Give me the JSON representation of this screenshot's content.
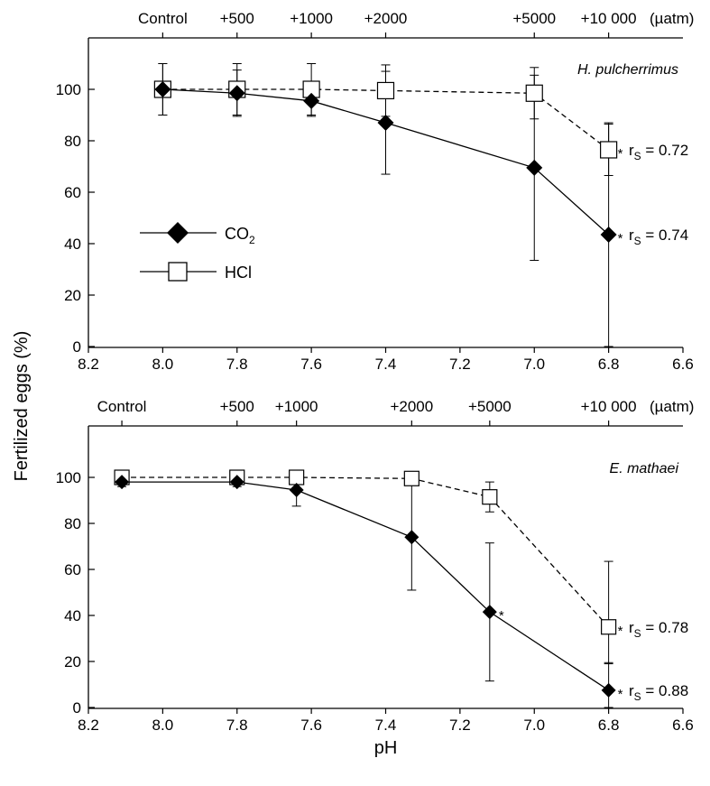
{
  "chart_data": [
    {
      "type": "line",
      "annotation_species": "H. pulcherrimus",
      "x_axis": {
        "label": "",
        "ticks": [
          8.2,
          8.0,
          7.8,
          7.6,
          7.4,
          7.2,
          7.0,
          6.8,
          6.6
        ],
        "tick_labels": [
          "8.2",
          "8.0",
          "7.8",
          "7.6",
          "7.4",
          "7.2",
          "7.0",
          "6.8",
          "6.6"
        ],
        "range": [
          8.2,
          6.6
        ]
      },
      "y_axis": {
        "ticks": [
          0,
          20,
          40,
          60,
          80,
          100
        ],
        "tick_labels": [
          "0",
          "20",
          "40",
          "60",
          "80",
          "100"
        ],
        "range": [
          0,
          118
        ]
      },
      "top_axis": {
        "unit": "(µatm)",
        "ticks": [
          {
            "label": "Control",
            "ph": 8.0
          },
          {
            "label": "+500",
            "ph": 7.8
          },
          {
            "label": "+1000",
            "ph": 7.6
          },
          {
            "label": "+2000",
            "ph": 7.4
          },
          {
            "label": "+5000",
            "ph": 7.0
          },
          {
            "label": "+10 000",
            "ph": 6.8
          }
        ]
      },
      "series": [
        {
          "name": "HCl",
          "marker": "square-open",
          "line": "dashed",
          "x": [
            8.0,
            7.8,
            7.6,
            7.4,
            7.0,
            6.8
          ],
          "y": [
            100,
            100,
            100,
            99.5,
            98.5,
            76.5
          ],
          "err": [
            [
              10,
              10
            ],
            [
              10,
              10
            ],
            [
              10,
              10
            ],
            [
              10,
              10
            ],
            [
              10,
              10
            ],
            [
              10,
              10
            ]
          ]
        },
        {
          "name": "CO2",
          "marker": "diamond-filled",
          "line": "solid",
          "x": [
            8.0,
            7.8,
            7.6,
            7.4,
            7.0,
            6.8
          ],
          "y": [
            100,
            98.5,
            95.5,
            87,
            69.5,
            43.5
          ],
          "err": [
            [
              10,
              10
            ],
            [
              9,
              9
            ],
            [
              6,
              6
            ],
            [
              20,
              20
            ],
            [
              36,
              36
            ],
            [
              43.5,
              43.5
            ]
          ]
        }
      ],
      "stats": [
        {
          "text": "r",
          "sub": "S",
          "value": " = 0.72",
          "series": "HCl"
        },
        {
          "text": "r",
          "sub": "S",
          "value": " = 0.74",
          "series": "CO2"
        }
      ],
      "significance": [
        {
          "series": "HCl",
          "x": 6.8
        },
        {
          "series": "CO2",
          "x": 6.8
        }
      ],
      "legend": {
        "placement": "center-left",
        "entries": [
          {
            "label": "CO",
            "sub": "2",
            "marker": "diamond-filled"
          },
          {
            "label": "HCl",
            "sub": "",
            "marker": "square-open"
          }
        ]
      }
    },
    {
      "type": "line",
      "annotation_species": "E. mathaei",
      "x_axis": {
        "label": "pH",
        "ticks": [
          8.2,
          8.0,
          7.8,
          7.6,
          7.4,
          7.2,
          7.0,
          6.8,
          6.6
        ],
        "tick_labels": [
          "8.2",
          "8.0",
          "7.8",
          "7.6",
          "7.4",
          "7.2",
          "7.0",
          "6.8",
          "6.6"
        ],
        "range": [
          8.2,
          6.6
        ]
      },
      "y_axis": {
        "ticks": [
          0,
          20,
          40,
          60,
          80,
          100
        ],
        "tick_labels": [
          "0",
          "20",
          "40",
          "60",
          "80",
          "100"
        ],
        "range": [
          0,
          118
        ]
      },
      "top_axis": {
        "unit": "(µatm)",
        "ticks": [
          {
            "label": "Control",
            "ph": 8.11
          },
          {
            "label": "+500",
            "ph": 7.8
          },
          {
            "label": "+1000",
            "ph": 7.64
          },
          {
            "label": "+2000",
            "ph": 7.33
          },
          {
            "label": "+5000",
            "ph": 7.12
          },
          {
            "label": "+10 000",
            "ph": 6.8
          }
        ]
      },
      "series": [
        {
          "name": "HCl",
          "marker": "square-open",
          "line": "dashed",
          "x": [
            8.11,
            7.8,
            7.64,
            7.33,
            7.12,
            6.8
          ],
          "y": [
            100,
            100,
            100,
            99.5,
            91.5,
            35
          ],
          "err": [
            [
              1,
              1
            ],
            [
              1,
              1
            ],
            [
              1.5,
              1.5
            ],
            [
              1.5,
              1.5
            ],
            [
              6.5,
              6.5
            ],
            [
              16,
              28.5
            ]
          ]
        },
        {
          "name": "CO2",
          "marker": "diamond-filled",
          "line": "solid",
          "x": [
            8.11,
            7.8,
            7.64,
            7.33,
            7.12,
            6.8
          ],
          "y": [
            98,
            98,
            94.5,
            74,
            41.5,
            7.5
          ],
          "err": [
            [
              2,
              2
            ],
            [
              2,
              2
            ],
            [
              7,
              3
            ],
            [
              23,
              25
            ],
            [
              30,
              30
            ],
            [
              7.5,
              12
            ]
          ]
        }
      ],
      "stats": [
        {
          "text": "r",
          "sub": "S",
          "value": " = 0.78",
          "series": "HCl"
        },
        {
          "text": "r",
          "sub": "S",
          "value": " = 0.88",
          "series": "CO2"
        }
      ],
      "significance": [
        {
          "series": "CO2",
          "x": 7.12
        },
        {
          "series": "HCl",
          "x": 6.8
        },
        {
          "series": "CO2",
          "x": 6.8
        }
      ]
    }
  ],
  "shared": {
    "ylabel": "Fertilized eggs (%)",
    "star": "*"
  }
}
